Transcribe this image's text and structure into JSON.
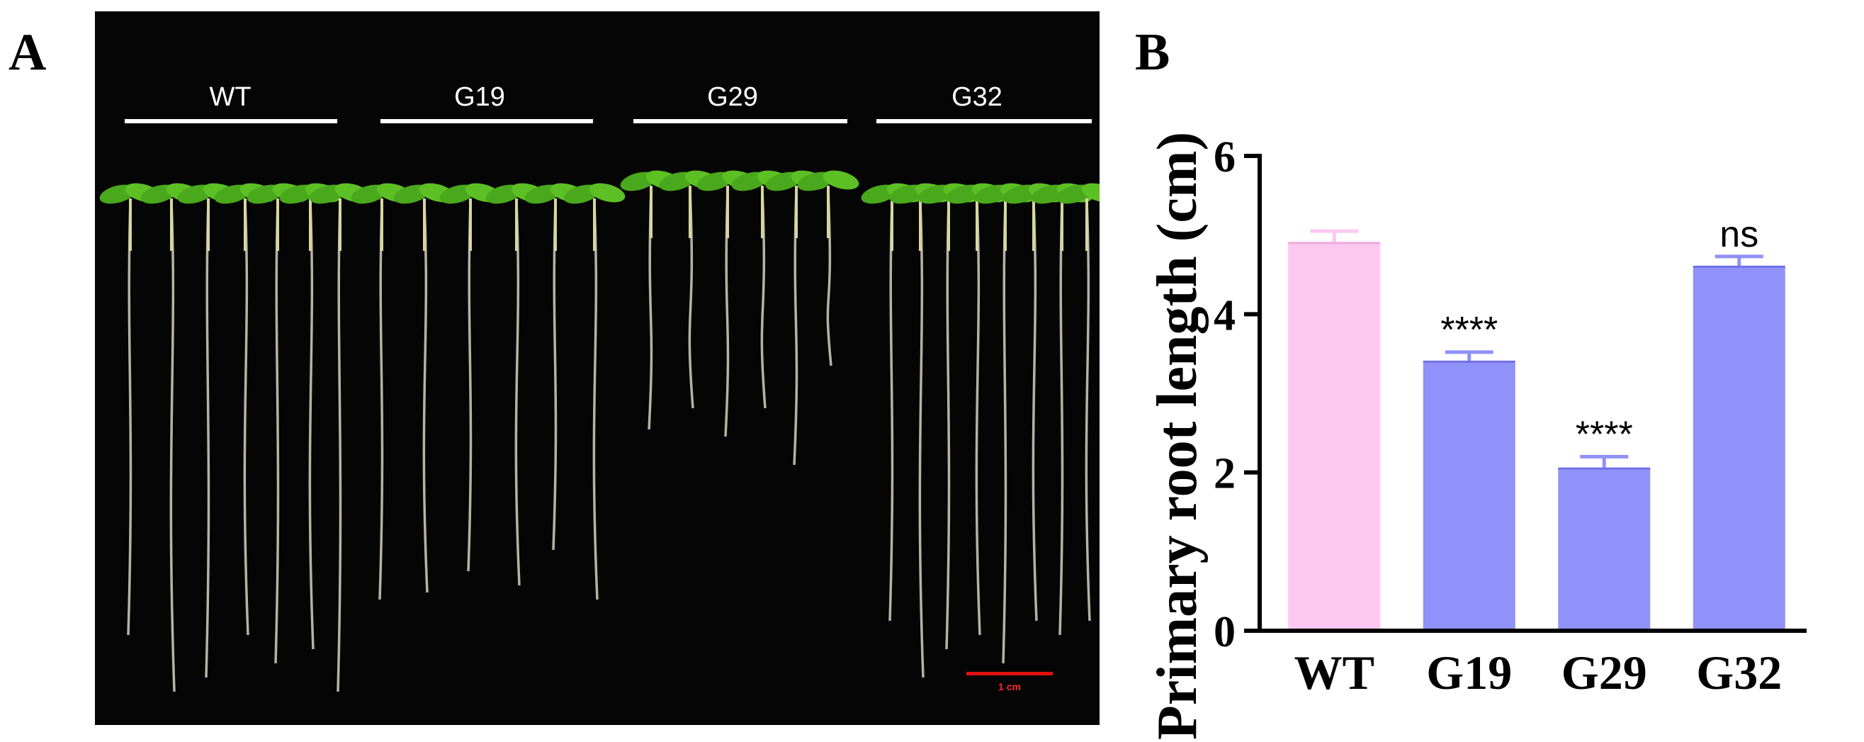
{
  "panels": {
    "a_letter": "A",
    "b_letter": "B"
  },
  "photo": {
    "group_labels": [
      "WT",
      "G19",
      "G29",
      "G32"
    ],
    "scale_bar_label": "1 cm",
    "background_color": "#050505",
    "scale_bar_color": "#ff2a2a"
  },
  "chart_data": {
    "type": "bar",
    "categories": [
      "WT",
      "G19",
      "G29",
      "G32"
    ],
    "values": [
      4.9,
      3.4,
      2.05,
      4.6
    ],
    "errors": [
      0.15,
      0.12,
      0.15,
      0.13
    ],
    "significance": [
      "",
      "****",
      "****",
      "ns"
    ],
    "colors": [
      "#fcc8f0",
      "#9191fa",
      "#9191fa",
      "#9191fa"
    ],
    "ylabel": "Primary root length (cm)",
    "ylim": [
      0,
      6
    ],
    "yticks": [
      0,
      2,
      4,
      6
    ],
    "grid": false
  }
}
